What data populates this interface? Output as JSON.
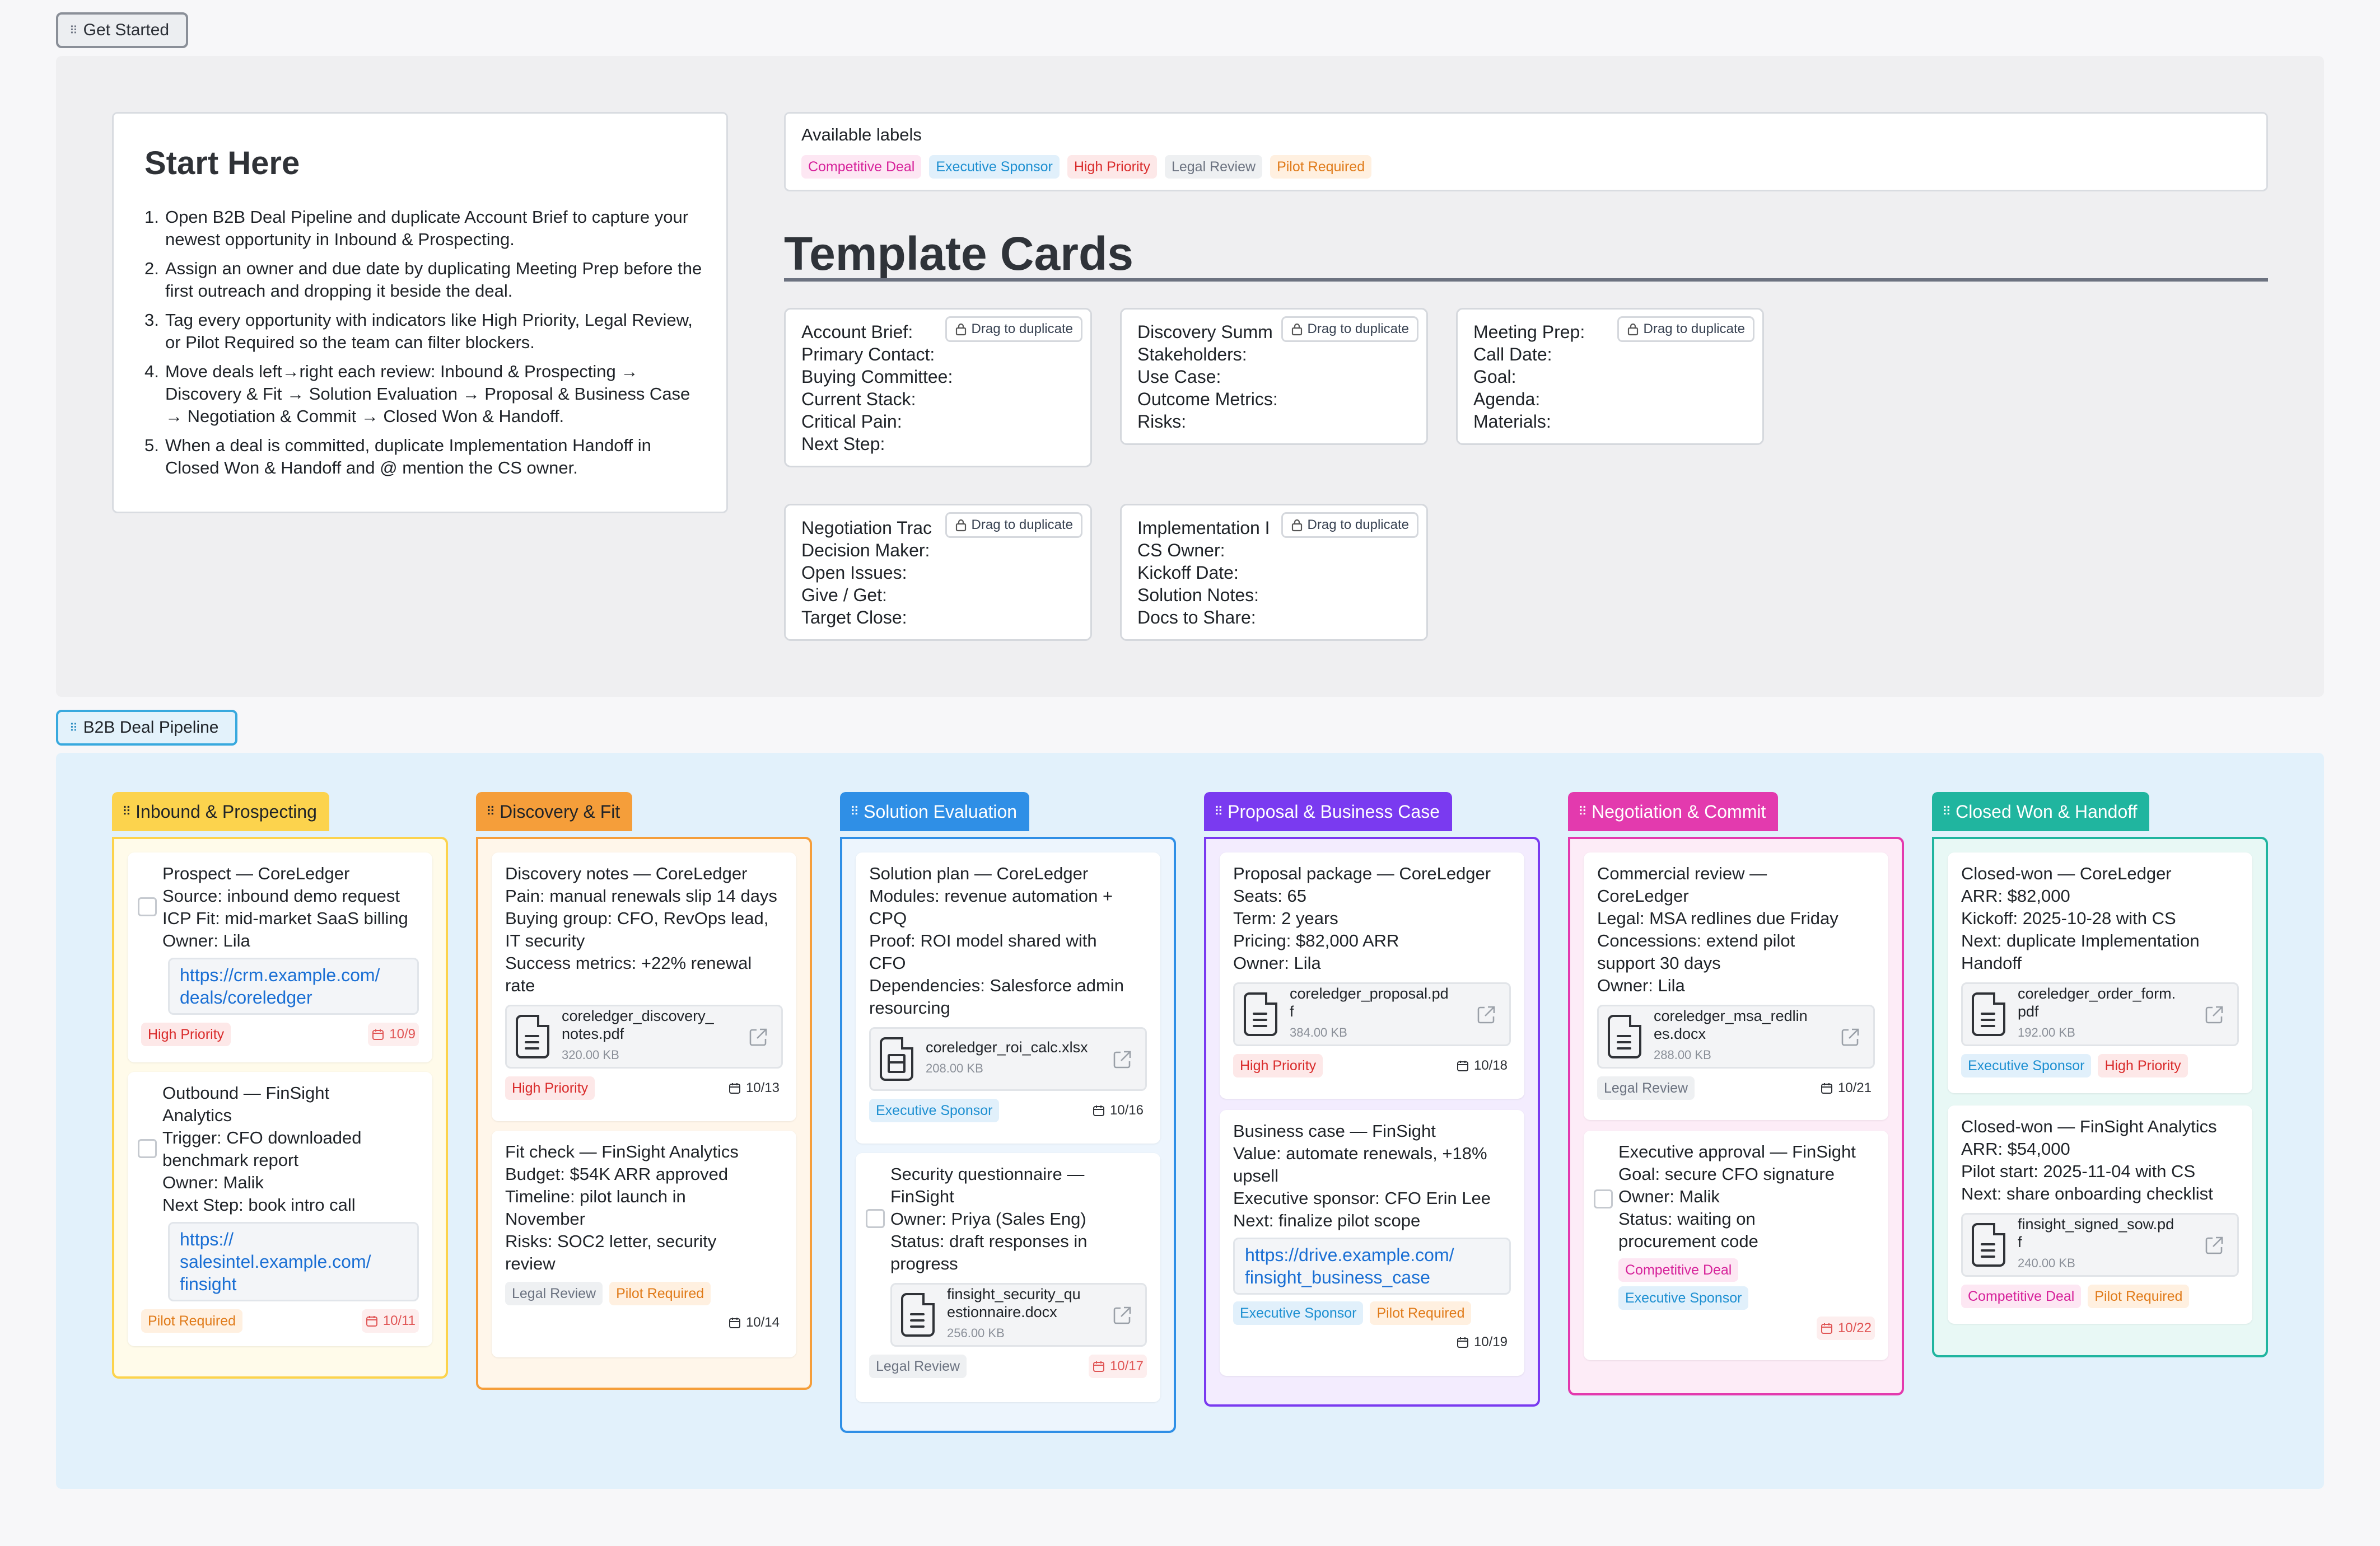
{
  "frames": {
    "get_started": "Get Started",
    "pipeline": "B2B Deal Pipeline"
  },
  "start_here": {
    "title": "Start Here",
    "steps": [
      {
        "num": "1.",
        "text": "Open B2B Deal Pipeline and duplicate Account Brief to capture your newest opportunity in Inbound & Prospecting."
      },
      {
        "num": "2.",
        "text": "Assign an owner and due date by duplicating Meeting Prep before the first outreach and dropping it beside the deal."
      },
      {
        "num": "3.",
        "text": "Tag every opportunity with indicators like High Priority, Legal Review, or Pilot Required so the team can filter blockers."
      },
      {
        "num": "4.",
        "text": "Move deals left→right each review: Inbound & Prospecting → Discovery & Fit → Solution Evaluation → Proposal & Business Case → Negotiation & Commit → Closed Won & Handoff."
      },
      {
        "num": "5.",
        "text": "When a deal is committed, duplicate Implementation Handoff in Closed Won & Handoff and @ mention the CS owner."
      }
    ]
  },
  "labels": {
    "title": "Available labels",
    "items": [
      {
        "text": "Competitive Deal",
        "color": "pink"
      },
      {
        "text": "Executive Sponsor",
        "color": "blue"
      },
      {
        "text": "High Priority",
        "color": "red"
      },
      {
        "text": "Legal Review",
        "color": "gray"
      },
      {
        "text": "Pilot Required",
        "color": "orange"
      }
    ]
  },
  "template_cards": {
    "title": "Template Cards",
    "drag_label": "Drag to duplicate",
    "cards": [
      {
        "lines": [
          "Account Brief:",
          "Primary Contact:",
          "Buying Committee:",
          "Current Stack:",
          "Critical Pain:",
          "Next Step:"
        ]
      },
      {
        "lines": [
          "Discovery Summ",
          "Stakeholders:",
          "Use Case:",
          "Outcome Metrics:",
          "Risks:"
        ]
      },
      {
        "lines": [
          "Meeting Prep:",
          "Call Date:",
          "Goal:",
          "Agenda:",
          "Materials:"
        ]
      },
      {
        "lines": [
          "Negotiation Trac",
          "Decision Maker:",
          "Open Issues:",
          "Give / Get:",
          "Target Close:"
        ]
      },
      {
        "lines": [
          "Implementation I",
          "CS Owner:",
          "Kickoff Date:",
          "Solution Notes:",
          "Docs to Share:"
        ]
      }
    ]
  },
  "columns": [
    {
      "title": "Inbound & Prospecting",
      "cards": [
        {
          "text": "Prospect — CoreLedger\nSource: inbound demo request\nICP Fit: mid-market SaaS billing\nOwner: Lila",
          "link": "https://crm.example.com/\ndeals/coreledger",
          "tags": [
            "High Priority"
          ],
          "date": "10/9"
        },
        {
          "text": "Outbound — FinSight\nAnalytics\nTrigger: CFO downloaded\nbenchmark report\nOwner: Malik\nNext Step: book intro call",
          "link": "https://\nsalesintel.example.com/\nfinsight",
          "tags": [
            "Pilot Required"
          ],
          "date": "10/11"
        }
      ]
    },
    {
      "title": "Discovery & Fit",
      "cards": [
        {
          "text": "Discovery notes — CoreLedger\nPain: manual renewals slip 14 days\nBuying group: CFO, RevOps lead,\nIT security\nSuccess metrics: +22% renewal\nrate",
          "file": {
            "name": "coreledger_discovery_\nnotes.pdf",
            "size": "320.00 KB"
          },
          "tags": [
            "High Priority"
          ],
          "date": "10/13"
        },
        {
          "text": "Fit check — FinSight Analytics\nBudget: $54K ARR approved\nTimeline: pilot launch in\nNovember\nRisks: SOC2 letter, security\nreview",
          "tags": [
            "Legal Review",
            "Pilot Required"
          ],
          "date": "10/14"
        }
      ]
    },
    {
      "title": "Solution Evaluation",
      "cards": [
        {
          "text": "Solution plan — CoreLedger\nModules: revenue automation +\nCPQ\nProof: ROI model shared with\nCFO\nDependencies: Salesforce admin\nresourcing",
          "file": {
            "name": "coreledger_roi_calc.xlsx",
            "size": "208.00 KB"
          },
          "tags": [
            "Executive Sponsor"
          ],
          "date": "10/16"
        },
        {
          "text": "Security questionnaire —\nFinSight\nOwner: Priya (Sales Eng)\nStatus: draft responses in\nprogress",
          "file": {
            "name": "finsight_security_qu\nestionnaire.docx",
            "size": "256.00 KB"
          },
          "tags": [
            "Legal Review"
          ],
          "date": "10/17"
        }
      ]
    },
    {
      "title": "Proposal & Business Case",
      "cards": [
        {
          "text": "Proposal package — CoreLedger\nSeats: 65\nTerm: 2 years\nPricing: $82,000 ARR\nOwner: Lila",
          "file": {
            "name": "coreledger_proposal.pd\nf",
            "size": "384.00 KB"
          },
          "tags": [
            "High Priority"
          ],
          "date": "10/18"
        },
        {
          "text": "Business case — FinSight\nValue: automate renewals, +18%\nupsell\nExecutive sponsor: CFO Erin Lee\nNext: finalize pilot scope",
          "link": "https://drive.example.com/\nfinsight_business_case",
          "tags": [
            "Executive Sponsor",
            "Pilot Required"
          ],
          "date": "10/19"
        }
      ]
    },
    {
      "title": "Negotiation & Commit",
      "cards": [
        {
          "text": "Commercial review —\nCoreLedger\nLegal: MSA redlines due Friday\nConcessions: extend pilot\nsupport 30 days\nOwner: Lila",
          "file": {
            "name": "coreledger_msa_redlin\nes.docx",
            "size": "288.00 KB"
          },
          "tags": [
            "Legal Review"
          ],
          "date": "10/21"
        },
        {
          "text": "Executive approval — FinSight\nGoal: secure CFO signature\nOwner: Malik\nStatus: waiting on\nprocurement code",
          "tags": [
            "Competitive Deal",
            "Executive Sponsor"
          ],
          "date": "10/22"
        }
      ]
    },
    {
      "title": "Closed Won & Handoff",
      "cards": [
        {
          "text": "Closed-won — CoreLedger\nARR: $82,000\nKickoff: 2025-10-28 with CS\nNext: duplicate Implementation\nHandoff",
          "file": {
            "name": "coreledger_order_form.\npdf",
            "size": "192.00 KB"
          },
          "tags": [
            "Executive Sponsor",
            "High Priority"
          ]
        },
        {
          "text": "Closed-won — FinSight Analytics\nARR: $54,000\nPilot start: 2025-11-04 with CS\nNext: share onboarding checklist",
          "file": {
            "name": "finsight_signed_sow.pd\nf",
            "size": "240.00 KB"
          },
          "tags": [
            "Competitive Deal",
            "Pilot Required"
          ]
        }
      ]
    }
  ]
}
